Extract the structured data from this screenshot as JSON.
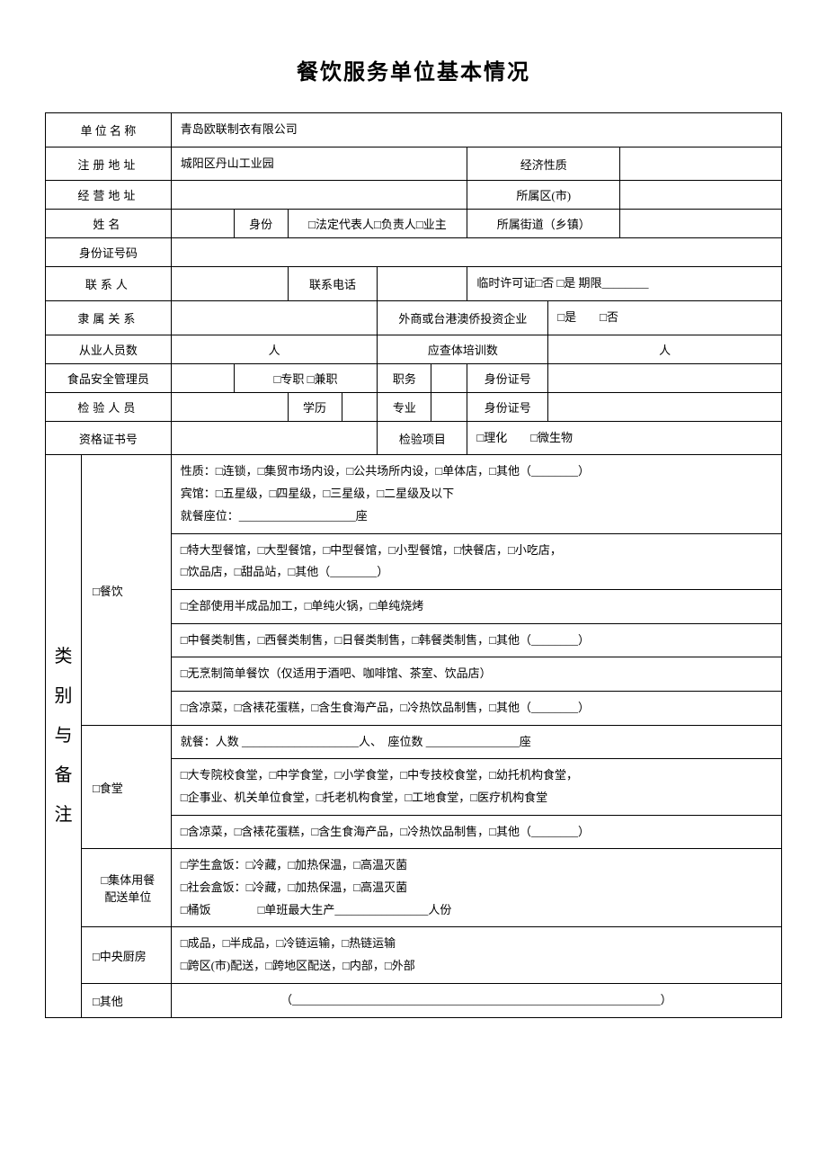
{
  "title": "餐饮服务单位基本情况",
  "rows": {
    "r1_label": "单 位 名 称",
    "r1_value": "青岛欧联制衣有限公司",
    "r2_label": "注册地址",
    "r2_value": "城阳区丹山工业园",
    "r2_label2": "经济性质",
    "r3_label": "经营地址",
    "r3_label2": "所属区(市)",
    "r4_label": "姓名",
    "r4_mid": "身份",
    "r4_opts": "□法定代表人□负责人□业主",
    "r4_label2": "所属街道（乡镇）",
    "r5_label": "身份证号码",
    "r6_label": "联系人",
    "r6_mid": "联系电话",
    "r6_right": "临时许可证□否 □是 期限________",
    "r7_label": "隶属关系",
    "r7_mid": "外商或台港澳侨投资企业",
    "r7_right": "□是　　□否",
    "r8_label": "从业人员数",
    "r8_unit": "人",
    "r8_mid": "应查体培训数",
    "r8_unit2": "人",
    "r9_label": "食品安全管理员",
    "r9_opts": "□专职 □兼职",
    "r9_mid": "职务",
    "r9_mid2": "身份证号",
    "r10_label": "检验人员",
    "r10_mid": "学历",
    "r10_mid2": "专业",
    "r10_mid3": "身份证号",
    "r11_label": "资格证书号",
    "r11_mid": "检验项目",
    "r11_right": "□理化　　□微生物"
  },
  "category_label": "类\n别\n与\n备\n注",
  "cat": {
    "canyin_label": "□餐饮",
    "canyin_1": "性质：□连锁，□集贸市场内设，□公共场所内设，□单体店，□其他（________）\n宾馆：□五星级，□四星级，□三星级，□二星级及以下\n就餐座位：____________________座",
    "canyin_2": "□特大型餐馆，□大型餐馆，□中型餐馆，□小型餐馆，□快餐店，□小吃店，\n□饮品店，□甜品站，□其他（________）",
    "canyin_3": "□全部使用半成品加工，□单纯火锅，□单纯烧烤",
    "canyin_4": "□中餐类制售，□西餐类制售，□日餐类制售，□韩餐类制售，□其他（________）",
    "canyin_5": "□无烹制简单餐饮（仅适用于酒吧、咖啡馆、茶室、饮品店）",
    "canyin_6": "□含凉菜，□含裱花蛋糕，□含生食海产品，□冷热饮品制售，□其他（________）",
    "shitang_label": "□食堂",
    "shitang_1": "就餐：人数 ____________________人、　座位数 ________________座",
    "shitang_2": "□大专院校食堂，□中学食堂，□小学食堂，□中专技校食堂，□幼托机构食堂，\n□企事业、机关单位食堂，□托老机构食堂，□工地食堂，□医疗机构食堂",
    "shitang_3": "□含凉菜，□含裱花蛋糕，□含生食海产品，□冷热饮品制售，□其他（________）",
    "jiti_label": "□集体用餐\n配送单位",
    "jiti_1": "□学生盒饭：□冷藏，□加热保温，□高温灭菌\n□社会盒饭：□冷藏，□加热保温，□高温灭菌\n□桶饭　　　　□单班最大生产________________人份",
    "chufang_label": "□中央厨房",
    "chufang_1": "□成品，□半成品，□冷链运输，□热链运输\n□跨区(市)配送，□跨地区配送，□内部，□外部",
    "qita_label": "□其他",
    "qita_1": "（_______________________________________________________________）"
  }
}
